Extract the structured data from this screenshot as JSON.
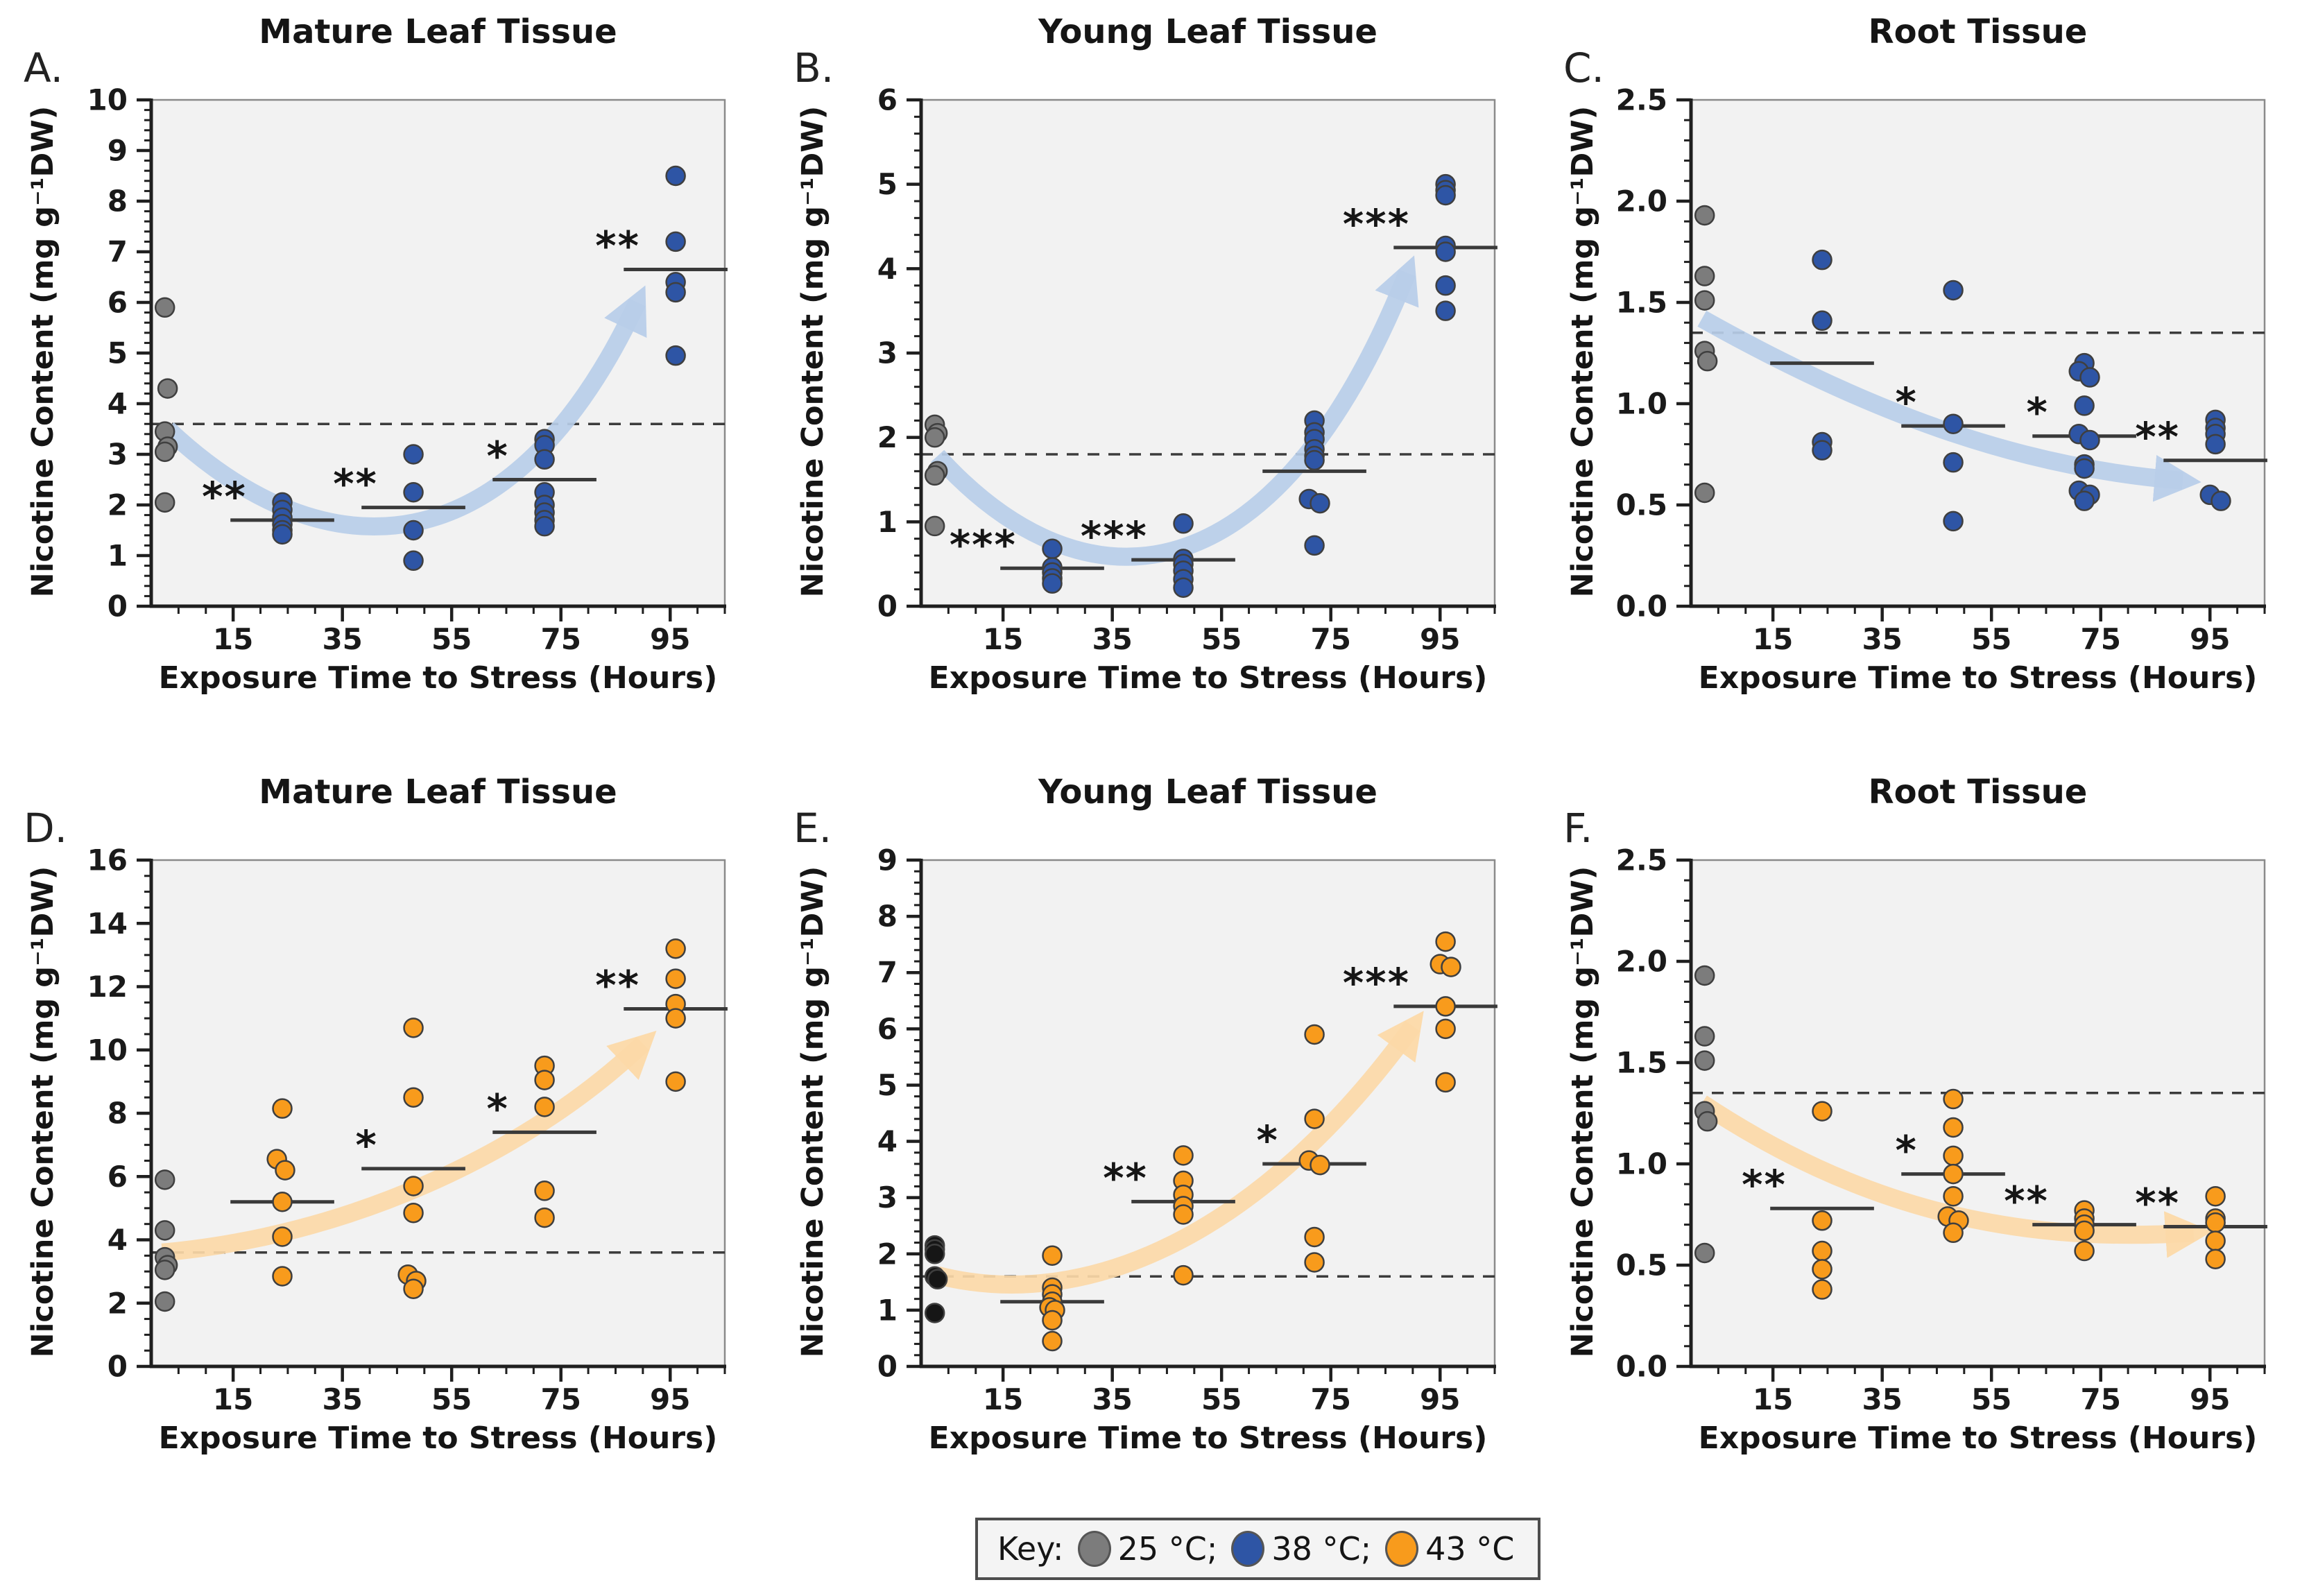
{
  "shared": {
    "xlabel": "Exposure Time to Stress (Hours)",
    "ylabel": "Nicotine Content (mg g⁻¹DW)",
    "x_ticks": [
      15,
      35,
      55,
      75,
      95
    ],
    "x_minor_step": 5,
    "x_range": [
      0,
      105
    ],
    "exposure_times_hours": [
      0,
      24,
      48,
      72,
      96
    ]
  },
  "key": {
    "label": "Key:",
    "items": [
      {
        "label": "25 °C;",
        "color": "#7c7c7c"
      },
      {
        "label": "38 °C;",
        "color": "#2e55a5"
      },
      {
        "label": "43 °C",
        "color": "#f89b1c"
      }
    ]
  },
  "chart_data": [
    {
      "type": "scatter",
      "letter": "A.",
      "title": "Mature Leaf Tissue",
      "xlabel": "Exposure Time to Stress (Hours)",
      "ylabel": "Nicotine Content (mg g⁻¹DW)",
      "ylim": [
        0,
        10
      ],
      "ystep": 1,
      "yminor": 0.2,
      "ydecimals": 0,
      "point_color": "#2e55a5",
      "control_color": "#7c7c7c",
      "arrow_color": "#b8cee9",
      "baseline_y": 3.6,
      "control_points": [
        [
          2.5,
          5.9
        ],
        [
          3,
          4.3
        ],
        [
          2.5,
          3.45
        ],
        [
          3,
          3.15
        ],
        [
          2.5,
          3.05
        ],
        [
          2.5,
          2.05
        ]
      ],
      "clusters": [
        {
          "x": 24,
          "mean": 1.7,
          "sig": "**",
          "points": [
            [
              0,
              2.05
            ],
            [
              0,
              1.9
            ],
            [
              0,
              1.75
            ],
            [
              0,
              1.62
            ],
            [
              0,
              1.5
            ],
            [
              0,
              1.42
            ]
          ]
        },
        {
          "x": 48,
          "mean": 1.95,
          "sig": "**",
          "points": [
            [
              0,
              3.0
            ],
            [
              0,
              2.25
            ],
            [
              0,
              1.5
            ],
            [
              0,
              0.9
            ]
          ]
        },
        {
          "x": 72,
          "mean": 2.5,
          "sig": "*",
          "points": [
            [
              0,
              3.3
            ],
            [
              0,
              3.18
            ],
            [
              0,
              2.9
            ],
            [
              0,
              2.25
            ],
            [
              0,
              2.0
            ],
            [
              0,
              1.85
            ],
            [
              0,
              1.7
            ],
            [
              0,
              1.58
            ]
          ]
        },
        {
          "x": 96,
          "mean": 6.65,
          "sig": "**",
          "points": [
            [
              0,
              8.5
            ],
            [
              0,
              7.2
            ],
            [
              0,
              6.4
            ],
            [
              0,
              6.2
            ],
            [
              0,
              4.95
            ]
          ]
        }
      ],
      "arrow": {
        "start": [
          3,
          3.5
        ],
        "c1": [
          32,
          0.55
        ],
        "c2": [
          66,
          0.7
        ],
        "end": [
          89,
          6.0
        ]
      }
    },
    {
      "type": "scatter",
      "letter": "B.",
      "title": "Young Leaf Tissue",
      "xlabel": "Exposure Time to Stress (Hours)",
      "ylabel": "Nicotine Content (mg g⁻¹DW)",
      "ylim": [
        0,
        6
      ],
      "ystep": 1,
      "yminor": 0.2,
      "ydecimals": 0,
      "point_color": "#2e55a5",
      "control_color": "#7c7c7c",
      "arrow_color": "#b8cee9",
      "baseline_y": 1.8,
      "control_points": [
        [
          2.5,
          2.15
        ],
        [
          3,
          2.05
        ],
        [
          2.5,
          2.0
        ],
        [
          3,
          1.6
        ],
        [
          2.5,
          1.55
        ],
        [
          2.5,
          0.95
        ]
      ],
      "clusters": [
        {
          "x": 24,
          "mean": 0.45,
          "sig": "***",
          "points": [
            [
              0,
              0.68
            ],
            [
              0,
              0.46
            ],
            [
              0,
              0.4
            ],
            [
              0,
              0.33
            ],
            [
              0,
              0.27
            ]
          ]
        },
        {
          "x": 48,
          "mean": 0.55,
          "sig": "***",
          "points": [
            [
              0,
              0.98
            ],
            [
              0,
              0.56
            ],
            [
              0,
              0.5
            ],
            [
              0,
              0.42
            ],
            [
              0,
              0.32
            ],
            [
              0,
              0.22
            ]
          ]
        },
        {
          "x": 72,
          "mean": 1.6,
          "sig": null,
          "points": [
            [
              0,
              2.2
            ],
            [
              0,
              2.06
            ],
            [
              0,
              1.98
            ],
            [
              0,
              1.86
            ],
            [
              0,
              1.78
            ],
            [
              0,
              1.73
            ],
            [
              -1,
              1.27
            ],
            [
              1,
              1.22
            ],
            [
              0,
              0.72
            ]
          ]
        },
        {
          "x": 96,
          "mean": 4.25,
          "sig": "***",
          "points": [
            [
              0,
              5.0
            ],
            [
              0,
              4.93
            ],
            [
              0,
              4.87
            ],
            [
              0,
              4.27
            ],
            [
              0,
              4.2
            ],
            [
              0,
              3.8
            ],
            [
              0,
              3.5
            ]
          ]
        }
      ],
      "arrow": {
        "start": [
          3,
          1.78
        ],
        "c1": [
          30,
          -0.15
        ],
        "c2": [
          65,
          0.05
        ],
        "end": [
          89,
          3.95
        ]
      }
    },
    {
      "type": "scatter",
      "letter": "C.",
      "title": "Root Tissue",
      "xlabel": "Exposure Time to Stress (Hours)",
      "ylabel": "Nicotine Content (mg g⁻¹DW)",
      "ylim": [
        0,
        2.5
      ],
      "ystep": 0.5,
      "yminor": 0.1,
      "ydecimals": 1,
      "point_color": "#2e55a5",
      "control_color": "#7c7c7c",
      "arrow_color": "#b8cee9",
      "baseline_y": 1.35,
      "control_points": [
        [
          2.5,
          1.93
        ],
        [
          2.5,
          1.63
        ],
        [
          2.5,
          1.51
        ],
        [
          2.5,
          1.26
        ],
        [
          3,
          1.21
        ],
        [
          2.5,
          0.56
        ]
      ],
      "clusters": [
        {
          "x": 24,
          "mean": 1.2,
          "sig": null,
          "points": [
            [
              0,
              1.71
            ],
            [
              0,
              1.41
            ],
            [
              0,
              0.81
            ],
            [
              0,
              0.77
            ]
          ]
        },
        {
          "x": 48,
          "mean": 0.89,
          "sig": "*",
          "points": [
            [
              0,
              1.56
            ],
            [
              0,
              0.9
            ],
            [
              0,
              0.71
            ],
            [
              0,
              0.42
            ]
          ]
        },
        {
          "x": 72,
          "mean": 0.84,
          "sig": "*",
          "points": [
            [
              0,
              1.2
            ],
            [
              -1,
              1.16
            ],
            [
              1,
              1.13
            ],
            [
              0,
              0.99
            ],
            [
              -1,
              0.85
            ],
            [
              1,
              0.82
            ],
            [
              0,
              0.7
            ],
            [
              0,
              0.68
            ],
            [
              -1,
              0.57
            ],
            [
              1,
              0.55
            ],
            [
              0,
              0.52
            ]
          ]
        },
        {
          "x": 96,
          "mean": 0.72,
          "sig": "**",
          "points": [
            [
              0,
              0.92
            ],
            [
              0,
              0.88
            ],
            [
              0,
              0.85
            ],
            [
              0,
              0.8
            ],
            [
              -1,
              0.55
            ],
            [
              1,
              0.52
            ]
          ]
        }
      ],
      "arrow": {
        "start": [
          2,
          1.42
        ],
        "c1": [
          35,
          0.92
        ],
        "c2": [
          62,
          0.68
        ],
        "end": [
          90,
          0.62
        ]
      }
    },
    {
      "type": "scatter",
      "letter": "D.",
      "title": "Mature Leaf Tissue",
      "xlabel": "Exposure Time to Stress (Hours)",
      "ylabel": "Nicotine Content (mg g⁻¹DW)",
      "ylim": [
        0,
        16
      ],
      "ystep": 2,
      "yminor": 0.5,
      "ydecimals": 0,
      "point_color": "#f89b1c",
      "control_color": "#7c7c7c",
      "arrow_color": "#fcd9a8",
      "baseline_y": 3.6,
      "control_points": [
        [
          2.5,
          5.9
        ],
        [
          2.5,
          4.3
        ],
        [
          2.5,
          3.45
        ],
        [
          3,
          3.2
        ],
        [
          2.5,
          3.05
        ],
        [
          2.5,
          2.05
        ]
      ],
      "clusters": [
        {
          "x": 24,
          "mean": 5.2,
          "sig": null,
          "points": [
            [
              0,
              8.15
            ],
            [
              -1,
              6.55
            ],
            [
              0.5,
              6.2
            ],
            [
              0,
              5.2
            ],
            [
              0,
              4.1
            ],
            [
              0,
              2.85
            ]
          ]
        },
        {
          "x": 48,
          "mean": 6.25,
          "sig": "*",
          "points": [
            [
              0,
              10.7
            ],
            [
              0,
              8.5
            ],
            [
              0,
              5.7
            ],
            [
              0,
              4.85
            ],
            [
              -1,
              2.9
            ],
            [
              0.5,
              2.7
            ],
            [
              0,
              2.45
            ]
          ]
        },
        {
          "x": 72,
          "mean": 7.4,
          "sig": "*",
          "points": [
            [
              0,
              9.5
            ],
            [
              0,
              9.05
            ],
            [
              0,
              8.2
            ],
            [
              0,
              5.55
            ],
            [
              0,
              4.7
            ]
          ]
        },
        {
          "x": 96,
          "mean": 11.3,
          "sig": "**",
          "points": [
            [
              0,
              13.2
            ],
            [
              0,
              12.25
            ],
            [
              0,
              11.45
            ],
            [
              0,
              11.0
            ],
            [
              0,
              9.0
            ]
          ]
        }
      ],
      "arrow": {
        "start": [
          2,
          3.6
        ],
        "c1": [
          35,
          4.1
        ],
        "c2": [
          68,
          6.6
        ],
        "end": [
          90,
          10.2
        ]
      }
    },
    {
      "type": "scatter",
      "letter": "E.",
      "title": "Young Leaf Tissue",
      "xlabel": "Exposure Time to Stress (Hours)",
      "ylabel": "Nicotine Content (mg g⁻¹DW)",
      "ylim": [
        0,
        9
      ],
      "ystep": 1,
      "yminor": 0.2,
      "ydecimals": 0,
      "point_color": "#f89b1c",
      "control_color": "#161616",
      "arrow_color": "#fcd9a8",
      "baseline_y": 1.6,
      "control_points": [
        [
          2.5,
          2.15
        ],
        [
          2.5,
          2.08
        ],
        [
          2.5,
          2.0
        ],
        [
          2.5,
          1.6
        ],
        [
          3,
          1.55
        ],
        [
          2.5,
          0.95
        ]
      ],
      "clusters": [
        {
          "x": 24,
          "mean": 1.15,
          "sig": null,
          "points": [
            [
              0,
              1.97
            ],
            [
              0,
              1.4
            ],
            [
              0,
              1.28
            ],
            [
              0,
              1.15
            ],
            [
              -0.5,
              1.05
            ],
            [
              0.5,
              1.0
            ],
            [
              0,
              0.82
            ],
            [
              0,
              0.45
            ]
          ]
        },
        {
          "x": 48,
          "mean": 2.93,
          "sig": "**",
          "points": [
            [
              0,
              3.75
            ],
            [
              0,
              3.3
            ],
            [
              0,
              3.05
            ],
            [
              0,
              2.85
            ],
            [
              0,
              2.7
            ],
            [
              0,
              1.62
            ]
          ]
        },
        {
          "x": 72,
          "mean": 3.6,
          "sig": "*",
          "points": [
            [
              0,
              5.9
            ],
            [
              0,
              4.4
            ],
            [
              -1,
              3.66
            ],
            [
              1,
              3.58
            ],
            [
              0,
              2.3
            ],
            [
              0,
              1.85
            ]
          ]
        },
        {
          "x": 96,
          "mean": 6.4,
          "sig": "***",
          "points": [
            [
              0,
              7.55
            ],
            [
              -1,
              7.15
            ],
            [
              1,
              7.1
            ],
            [
              0,
              6.4
            ],
            [
              0,
              6.0
            ],
            [
              0,
              5.05
            ]
          ]
        }
      ],
      "arrow": {
        "start": [
          3,
          1.62
        ],
        "c1": [
          30,
          0.95
        ],
        "c2": [
          62,
          2.3
        ],
        "end": [
          90,
          6.05
        ]
      }
    },
    {
      "type": "scatter",
      "letter": "F.",
      "title": "Root Tissue",
      "xlabel": "Exposure Time to Stress (Hours)",
      "ylabel": "Nicotine Content (mg g⁻¹DW)",
      "ylim": [
        0,
        2.5
      ],
      "ystep": 0.5,
      "yminor": 0.1,
      "ydecimals": 1,
      "point_color": "#f89b1c",
      "control_color": "#7c7c7c",
      "arrow_color": "#fcd9a8",
      "baseline_y": 1.35,
      "control_points": [
        [
          2.5,
          1.93
        ],
        [
          2.5,
          1.63
        ],
        [
          2.5,
          1.51
        ],
        [
          2.5,
          1.26
        ],
        [
          3,
          1.21
        ],
        [
          2.5,
          0.56
        ]
      ],
      "clusters": [
        {
          "x": 24,
          "mean": 0.78,
          "sig": "**",
          "points": [
            [
              0,
              1.26
            ],
            [
              0,
              0.72
            ],
            [
              0,
              0.57
            ],
            [
              0,
              0.48
            ],
            [
              0,
              0.38
            ]
          ]
        },
        {
          "x": 48,
          "mean": 0.95,
          "sig": "*",
          "points": [
            [
              0,
              1.32
            ],
            [
              0,
              1.18
            ],
            [
              0,
              1.04
            ],
            [
              0,
              0.95
            ],
            [
              0,
              0.84
            ],
            [
              -1,
              0.74
            ],
            [
              1,
              0.72
            ],
            [
              0,
              0.66
            ]
          ]
        },
        {
          "x": 72,
          "mean": 0.7,
          "sig": "**",
          "points": [
            [
              0,
              0.77
            ],
            [
              0,
              0.73
            ],
            [
              0,
              0.7
            ],
            [
              0,
              0.67
            ],
            [
              0,
              0.57
            ]
          ]
        },
        {
          "x": 96,
          "mean": 0.69,
          "sig": "**",
          "points": [
            [
              0,
              0.84
            ],
            [
              0,
              0.73
            ],
            [
              0,
              0.71
            ],
            [
              0,
              0.62
            ],
            [
              0,
              0.53
            ]
          ]
        }
      ],
      "arrow": {
        "start": [
          2,
          1.3
        ],
        "c1": [
          30,
          0.8
        ],
        "c2": [
          58,
          0.6
        ],
        "end": [
          92,
          0.66
        ]
      }
    }
  ]
}
